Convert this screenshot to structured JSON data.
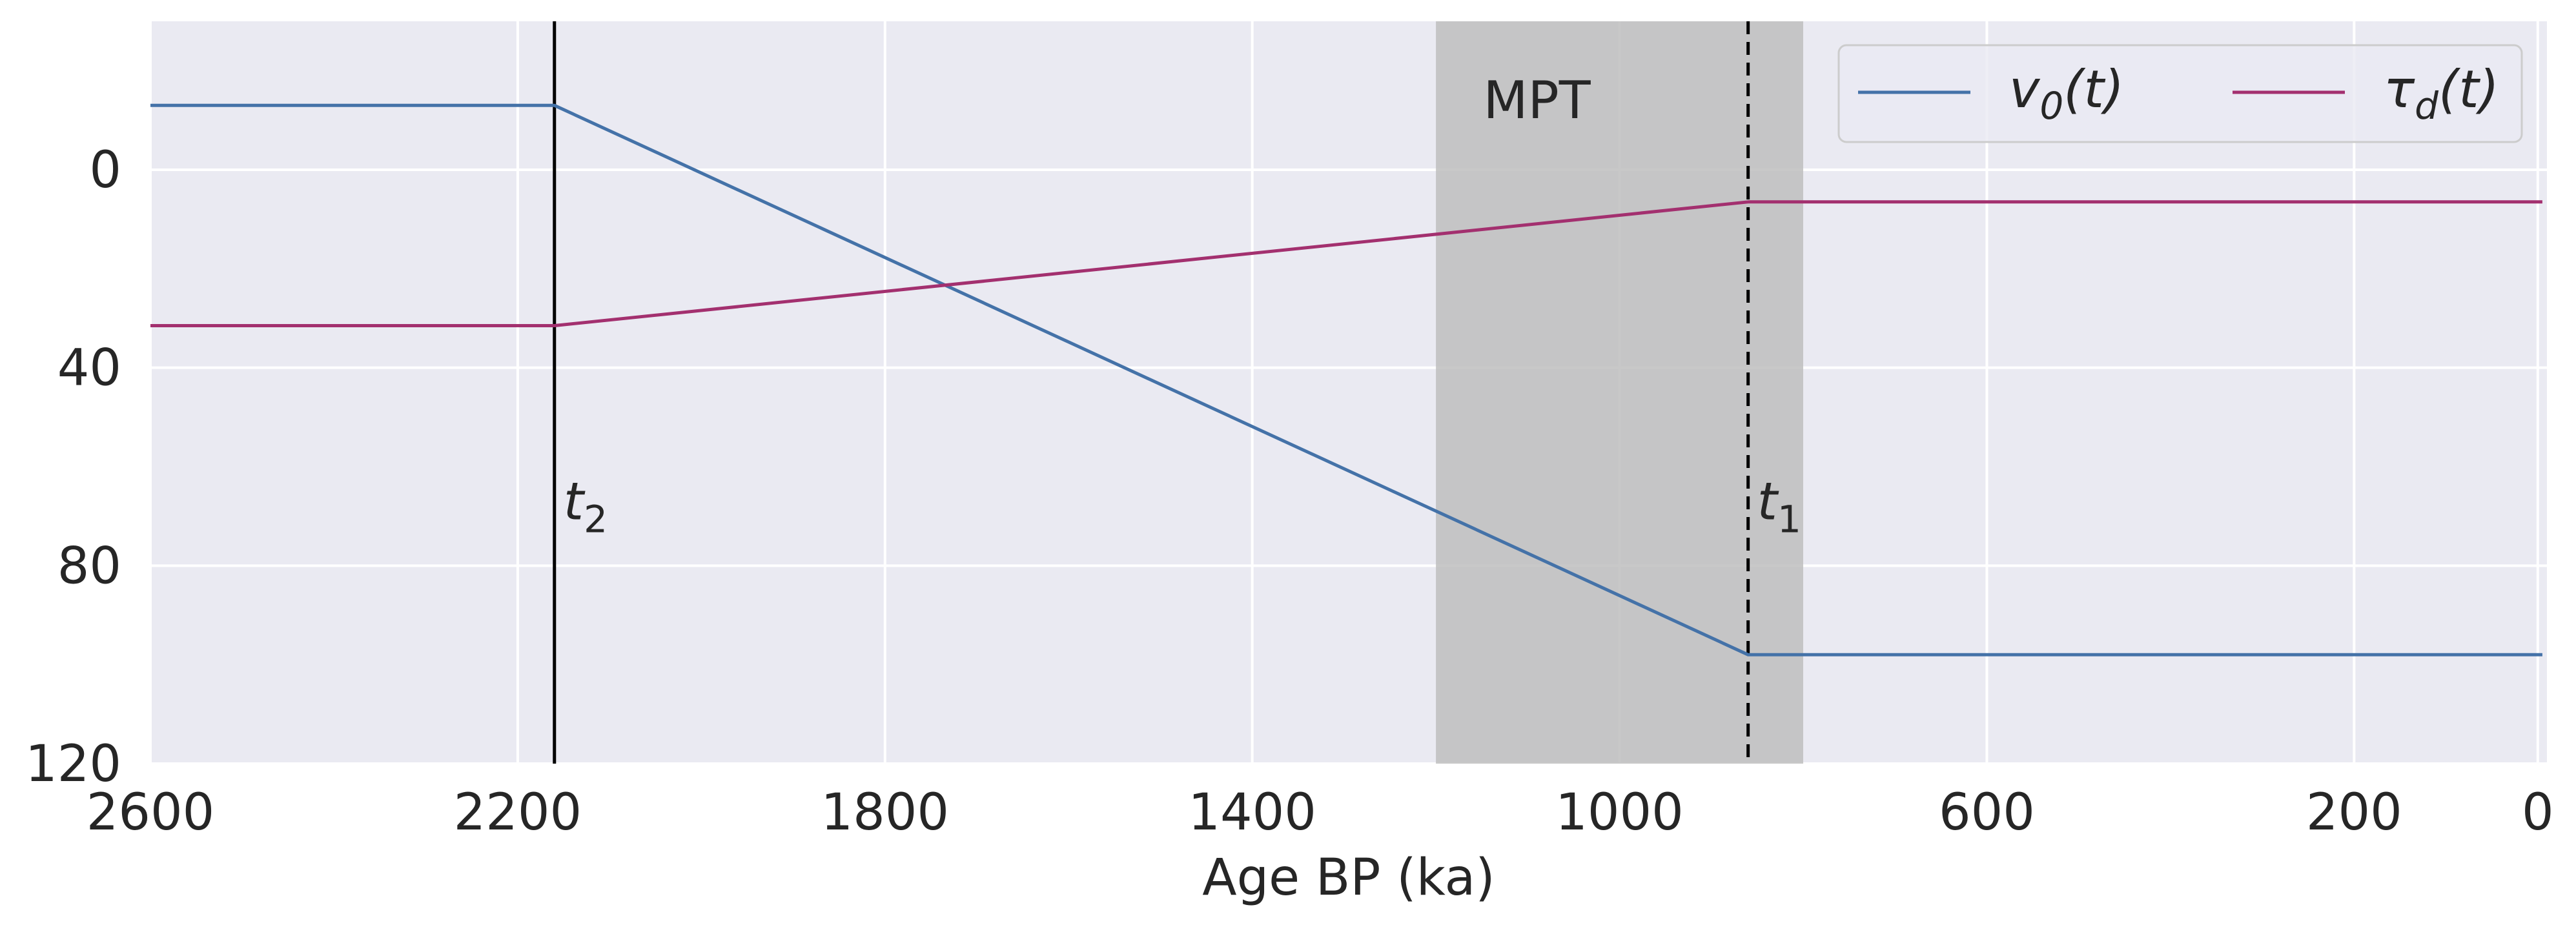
{
  "chart_data": {
    "type": "line",
    "title": "",
    "xlabel": "Age BP (ka)",
    "ylabel": "",
    "xlim": [
      2600,
      -10
    ],
    "ylim": [
      120,
      -30
    ],
    "x_reversed": true,
    "y_reversed": true,
    "grid": true,
    "xticks": [
      {
        "value": 2600,
        "label": "2600"
      },
      {
        "value": 2200,
        "label": "2200"
      },
      {
        "value": 1800,
        "label": "1800"
      },
      {
        "value": 1400,
        "label": "1400"
      },
      {
        "value": 1000,
        "label": "1000"
      },
      {
        "value": 600,
        "label": "600"
      },
      {
        "value": 200,
        "label": "200"
      },
      {
        "value": 0,
        "label": "0"
      }
    ],
    "yticks": [
      {
        "value": 0,
        "label": "0"
      },
      {
        "value": 40,
        "label": "40"
      },
      {
        "value": 80,
        "label": "80"
      },
      {
        "value": 120,
        "label": "120"
      }
    ],
    "legend_position": "top-right",
    "series": [
      {
        "name": "v0(t)",
        "color": "#4472a8",
        "x": [
          2600,
          2160,
          860,
          -5
        ],
        "y": [
          -13,
          -13,
          98,
          98
        ]
      },
      {
        "name": "τd(t)",
        "color": "#a3306f",
        "x": [
          2600,
          2160,
          860,
          -5
        ],
        "y": [
          31.5,
          31.5,
          6.5,
          6.5
        ]
      }
    ],
    "shaded_regions": [
      {
        "label": "MPT",
        "x_start": 1200,
        "x_end": 800,
        "color": "#bebebe"
      }
    ],
    "vlines": [
      {
        "x": 2160,
        "style": "solid",
        "color": "#000000",
        "label_base": "t",
        "label_sub": "2",
        "label_y": 67
      },
      {
        "x": 860,
        "style": "dashed",
        "color": "#000000",
        "label_base": "t",
        "label_sub": "1",
        "label_y": 67
      }
    ]
  }
}
